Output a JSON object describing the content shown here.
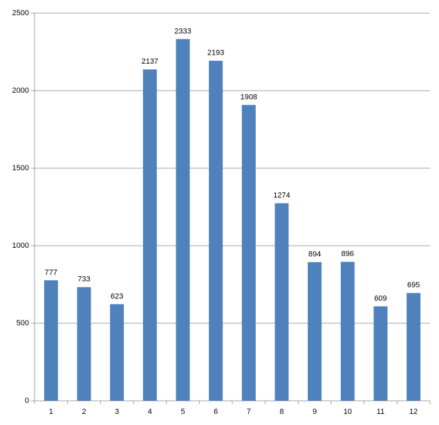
{
  "chart_data": {
    "type": "bar",
    "categories": [
      "1",
      "2",
      "3",
      "4",
      "5",
      "6",
      "7",
      "8",
      "9",
      "10",
      "11",
      "12"
    ],
    "values": [
      777,
      733,
      623,
      2137,
      2333,
      2193,
      1908,
      1274,
      894,
      896,
      609,
      695
    ],
    "color": "#4f81bd",
    "ylim": [
      0,
      2500
    ],
    "yticks": [
      0,
      500,
      1000,
      1500,
      2000,
      2500
    ],
    "grid": true
  }
}
